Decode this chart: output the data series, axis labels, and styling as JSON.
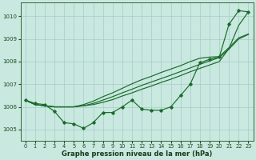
{
  "bg_color": "#c8e8e0",
  "grid_color": "#a8ccc4",
  "line_color": "#1a6b2a",
  "xlabel": "Graphe pression niveau de la mer (hPa)",
  "ylim": [
    1004.5,
    1010.6
  ],
  "xlim": [
    -0.5,
    23.5
  ],
  "yticks": [
    1005,
    1006,
    1007,
    1008,
    1009,
    1010
  ],
  "xticks": [
    0,
    1,
    2,
    3,
    4,
    5,
    6,
    7,
    8,
    9,
    10,
    11,
    12,
    13,
    14,
    15,
    16,
    17,
    18,
    19,
    20,
    21,
    22,
    23
  ],
  "series_line1": [
    1006.3,
    1006.1,
    1006.05,
    1006.0,
    1006.0,
    1006.0,
    1006.05,
    1006.15,
    1006.3,
    1006.45,
    1006.62,
    1006.78,
    1006.95,
    1007.1,
    1007.25,
    1007.4,
    1007.56,
    1007.72,
    1007.88,
    1008.03,
    1008.18,
    1008.55,
    1009.0,
    1009.2
  ],
  "series_line2": [
    1006.3,
    1006.1,
    1006.05,
    1006.0,
    1006.0,
    1006.0,
    1006.1,
    1006.25,
    1006.45,
    1006.62,
    1006.82,
    1007.02,
    1007.2,
    1007.35,
    1007.52,
    1007.67,
    1007.82,
    1008.0,
    1008.15,
    1008.2,
    1008.22,
    1008.62,
    1009.05,
    1009.22
  ],
  "series_line3": [
    1006.3,
    1006.1,
    1006.05,
    1006.0,
    1006.0,
    1006.0,
    1006.05,
    1006.1,
    1006.2,
    1006.32,
    1006.48,
    1006.62,
    1006.78,
    1006.92,
    1007.08,
    1007.22,
    1007.38,
    1007.55,
    1007.7,
    1007.85,
    1008.0,
    1008.58,
    1009.6,
    1010.2
  ],
  "series_marker": [
    1006.3,
    1006.15,
    1006.1,
    1005.8,
    1005.3,
    1005.25,
    1005.05,
    1005.3,
    1005.75,
    1005.75,
    1006.0,
    1006.3,
    1005.9,
    1005.85,
    1005.85,
    1006.0,
    1006.5,
    1007.0,
    1007.95,
    1008.1,
    1008.2,
    1009.65,
    1010.25,
    1010.2
  ]
}
